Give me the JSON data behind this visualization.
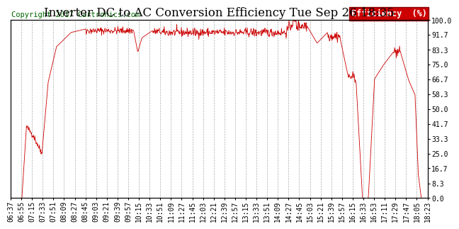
{
  "title": "Inverter DC to AC Conversion Efficiency Tue Sep 26 18:35",
  "copyright": "Copyright 2017 Cartronics.com",
  "legend_label": "Efficiency  (%)",
  "legend_bg": "#cc0000",
  "legend_text_color": "#ffffff",
  "line_color": "#cc0000",
  "bg_color": "#ffffff",
  "plot_bg_color": "#ffffff",
  "grid_color": "#999999",
  "grid_style": "--",
  "yticks": [
    0.0,
    8.3,
    16.7,
    25.0,
    33.3,
    41.7,
    50.0,
    58.3,
    66.7,
    75.0,
    83.3,
    91.7,
    100.0
  ],
  "ylim": [
    0.0,
    100.0
  ],
  "x_tick_labels": [
    "06:37",
    "06:55",
    "07:15",
    "07:33",
    "07:51",
    "08:09",
    "08:27",
    "08:45",
    "09:03",
    "09:21",
    "09:39",
    "09:57",
    "10:15",
    "10:33",
    "10:51",
    "11:09",
    "11:27",
    "11:45",
    "12:03",
    "12:21",
    "12:39",
    "12:57",
    "13:15",
    "13:33",
    "13:51",
    "14:09",
    "14:27",
    "14:45",
    "15:03",
    "15:21",
    "15:39",
    "15:57",
    "16:15",
    "16:33",
    "16:53",
    "17:11",
    "17:29",
    "17:47",
    "18:05",
    "18:23"
  ],
  "title_fontsize": 12,
  "copyright_fontsize": 7.5,
  "tick_fontsize": 7,
  "legend_fontsize": 8.5
}
